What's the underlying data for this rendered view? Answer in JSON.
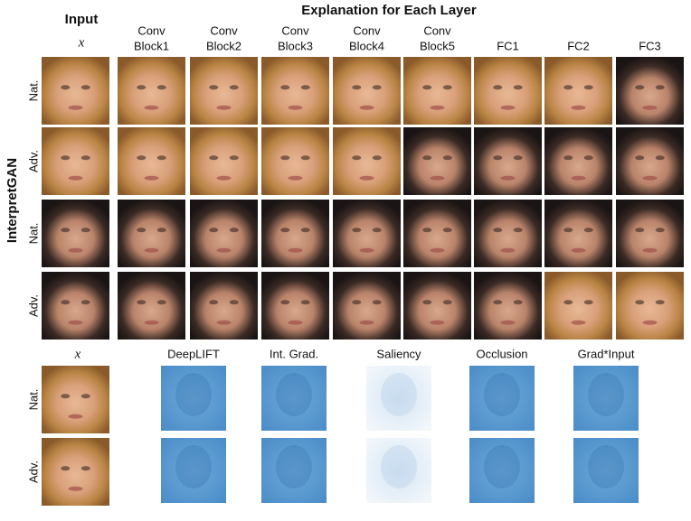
{
  "title": "Explanation for Each Layer",
  "input_header": "Input",
  "input_symbol": "x",
  "side_label": "InterpretGAN",
  "layer_columns": [
    [
      "Conv",
      "Block1"
    ],
    [
      "Conv",
      "Block2"
    ],
    [
      "Conv",
      "Block3"
    ],
    [
      "Conv",
      "Block4"
    ],
    [
      "Conv",
      "Block5"
    ],
    [
      "FC1"
    ],
    [
      "FC2"
    ],
    [
      "FC3"
    ]
  ],
  "top_rows": [
    "Nat.",
    "Adv.",
    "Nat.",
    "Adv."
  ],
  "bottom": {
    "input_symbol": "x",
    "methods": [
      "DeepLIFT",
      "Int. Grad.",
      "Saliency",
      "Occlusion",
      "Grad*Input"
    ],
    "rows": [
      "Nat.",
      "Adv."
    ]
  }
}
